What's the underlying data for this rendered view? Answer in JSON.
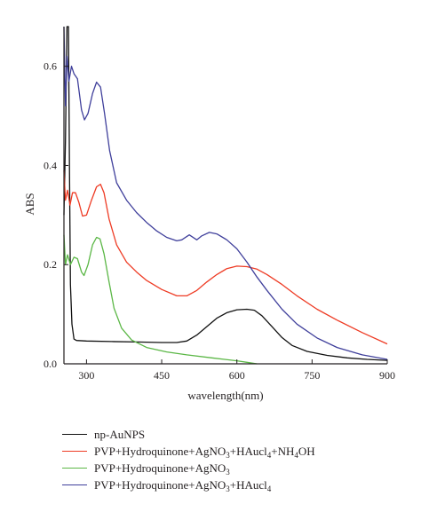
{
  "chart_data": {
    "type": "line",
    "xlabel": "wavelength(nm)",
    "ylabel": "ABS",
    "xlim": [
      255,
      900
    ],
    "ylim": [
      0,
      0.68
    ],
    "xticks": [
      300,
      450,
      600,
      750,
      900
    ],
    "yticks": [
      0.0,
      0.2,
      0.4,
      0.6
    ],
    "xtick_labels": [
      "300",
      "450",
      "600",
      "750",
      "900"
    ],
    "ytick_labels": [
      "0.0",
      "0.2",
      "0.4",
      "0.6"
    ],
    "grid": false,
    "legend_position": "below",
    "series": [
      {
        "name": "np-AuNPS",
        "color": "#111111",
        "points": [
          [
            255,
            0.3
          ],
          [
            258,
            0.45
          ],
          [
            261,
            0.68
          ],
          [
            264,
            0.68
          ],
          [
            266,
            0.4
          ],
          [
            268,
            0.16
          ],
          [
            271,
            0.08
          ],
          [
            275,
            0.05
          ],
          [
            280,
            0.047
          ],
          [
            300,
            0.046
          ],
          [
            350,
            0.045
          ],
          [
            400,
            0.044
          ],
          [
            450,
            0.043
          ],
          [
            480,
            0.043
          ],
          [
            500,
            0.046
          ],
          [
            520,
            0.058
          ],
          [
            540,
            0.075
          ],
          [
            560,
            0.092
          ],
          [
            580,
            0.103
          ],
          [
            600,
            0.109
          ],
          [
            620,
            0.11
          ],
          [
            635,
            0.108
          ],
          [
            650,
            0.097
          ],
          [
            670,
            0.075
          ],
          [
            690,
            0.053
          ],
          [
            710,
            0.037
          ],
          [
            740,
            0.025
          ],
          [
            780,
            0.017
          ],
          [
            820,
            0.012
          ],
          [
            860,
            0.009
          ],
          [
            900,
            0.007
          ]
        ]
      },
      {
        "name_parts": [
          [
            "PVP+Hydroquinone+AgNO",
            ""
          ],
          [
            "3",
            ""
          ],
          [
            "+HAucl",
            ""
          ],
          [
            "4",
            ""
          ],
          [
            "+NH",
            ""
          ],
          [
            "4",
            ""
          ],
          [
            "OH",
            ""
          ]
        ],
        "name": "PVP+Hydroquinone+AgNO3+HAucl4+NH4OH",
        "color": "#ee3b24",
        "points": [
          [
            255,
            0.39
          ],
          [
            258,
            0.33
          ],
          [
            262,
            0.35
          ],
          [
            267,
            0.32
          ],
          [
            272,
            0.345
          ],
          [
            278,
            0.345
          ],
          [
            285,
            0.325
          ],
          [
            292,
            0.298
          ],
          [
            300,
            0.3
          ],
          [
            310,
            0.33
          ],
          [
            320,
            0.357
          ],
          [
            328,
            0.362
          ],
          [
            335,
            0.345
          ],
          [
            345,
            0.292
          ],
          [
            360,
            0.24
          ],
          [
            380,
            0.205
          ],
          [
            400,
            0.185
          ],
          [
            420,
            0.168
          ],
          [
            450,
            0.15
          ],
          [
            480,
            0.137
          ],
          [
            500,
            0.137
          ],
          [
            520,
            0.148
          ],
          [
            540,
            0.165
          ],
          [
            560,
            0.18
          ],
          [
            580,
            0.192
          ],
          [
            600,
            0.197
          ],
          [
            620,
            0.196
          ],
          [
            640,
            0.191
          ],
          [
            660,
            0.18
          ],
          [
            690,
            0.16
          ],
          [
            720,
            0.137
          ],
          [
            760,
            0.11
          ],
          [
            800,
            0.088
          ],
          [
            850,
            0.063
          ],
          [
            900,
            0.04
          ]
        ]
      },
      {
        "name": "PVP+Hydroquinone+AgNO3",
        "color": "#5bb746",
        "points": [
          [
            255,
            0.26
          ],
          [
            258,
            0.2
          ],
          [
            262,
            0.22
          ],
          [
            268,
            0.2
          ],
          [
            275,
            0.215
          ],
          [
            282,
            0.212
          ],
          [
            290,
            0.185
          ],
          [
            295,
            0.178
          ],
          [
            303,
            0.2
          ],
          [
            312,
            0.24
          ],
          [
            320,
            0.255
          ],
          [
            327,
            0.252
          ],
          [
            335,
            0.222
          ],
          [
            345,
            0.165
          ],
          [
            355,
            0.112
          ],
          [
            370,
            0.072
          ],
          [
            390,
            0.048
          ],
          [
            420,
            0.033
          ],
          [
            460,
            0.024
          ],
          [
            500,
            0.018
          ],
          [
            550,
            0.012
          ],
          [
            600,
            0.006
          ],
          [
            620,
            0.003
          ],
          [
            640,
            0.0
          ]
        ]
      },
      {
        "name": "PVP+Hydroquinone+AgNO3+HAucl4",
        "color": "#3f3f9b",
        "points": [
          [
            255,
            0.68
          ],
          [
            258,
            0.52
          ],
          [
            261,
            0.62
          ],
          [
            265,
            0.57
          ],
          [
            270,
            0.6
          ],
          [
            275,
            0.585
          ],
          [
            282,
            0.575
          ],
          [
            290,
            0.512
          ],
          [
            296,
            0.492
          ],
          [
            303,
            0.505
          ],
          [
            312,
            0.545
          ],
          [
            320,
            0.568
          ],
          [
            328,
            0.558
          ],
          [
            336,
            0.505
          ],
          [
            346,
            0.43
          ],
          [
            360,
            0.365
          ],
          [
            380,
            0.33
          ],
          [
            400,
            0.305
          ],
          [
            420,
            0.285
          ],
          [
            440,
            0.268
          ],
          [
            460,
            0.255
          ],
          [
            480,
            0.248
          ],
          [
            490,
            0.25
          ],
          [
            505,
            0.26
          ],
          [
            520,
            0.25
          ],
          [
            530,
            0.258
          ],
          [
            545,
            0.265
          ],
          [
            560,
            0.262
          ],
          [
            580,
            0.25
          ],
          [
            600,
            0.232
          ],
          [
            620,
            0.205
          ],
          [
            640,
            0.175
          ],
          [
            660,
            0.148
          ],
          [
            690,
            0.11
          ],
          [
            720,
            0.08
          ],
          [
            760,
            0.052
          ],
          [
            800,
            0.033
          ],
          [
            850,
            0.018
          ],
          [
            900,
            0.009
          ]
        ]
      }
    ]
  },
  "legend_labels": [
    "np-AuNPS",
    "PVP+Hydroquinone+AgNO3+HAucl4+NH4OH",
    "PVP+Hydroquinone+AgNO3",
    "PVP+Hydroquinone+AgNO3+HAucl4"
  ]
}
